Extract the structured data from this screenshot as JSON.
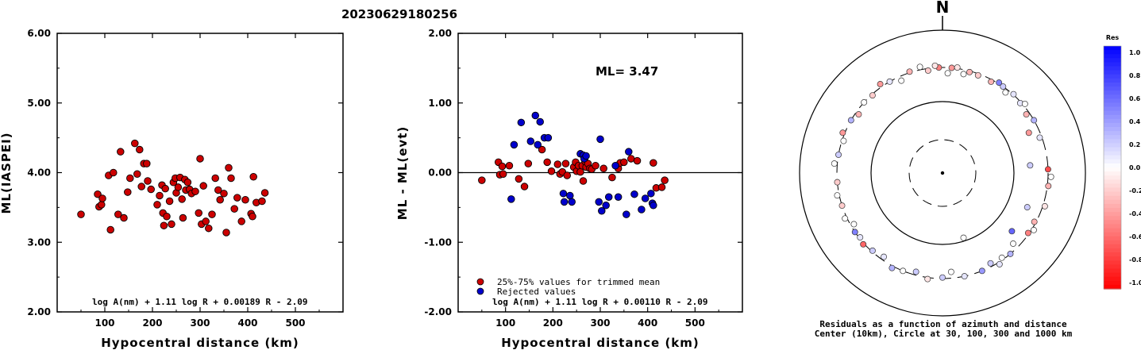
{
  "event_id": "20230629180256",
  "colors": {
    "station_red": "#cc0000",
    "rejected_blue": "#0000cc",
    "axis": "#000000"
  },
  "chart_data": [
    {
      "type": "scatter",
      "xlabel": "Hypocentral distance (km)",
      "ylabel": "ML(IASPEI)",
      "xlim": [
        0,
        600
      ],
      "ylim": [
        2.0,
        6.0
      ],
      "xticks": [
        "100",
        "200",
        "300",
        "400",
        "500"
      ],
      "yticks": [
        "2.00",
        "3.00",
        "4.00",
        "5.00",
        "6.00"
      ],
      "formula": "log A(nm) + 1.11 log R + 0.00189 R - 2.09",
      "series": [
        {
          "color": "#cc0000",
          "points": [
            [
              50,
              3.4
            ],
            [
              85,
              3.69
            ],
            [
              88,
              3.51
            ],
            [
              93,
              3.54
            ],
            [
              95,
              3.63
            ],
            [
              108,
              3.96
            ],
            [
              112,
              3.18
            ],
            [
              118,
              4.0
            ],
            [
              128,
              3.4
            ],
            [
              133,
              4.3
            ],
            [
              140,
              3.35
            ],
            [
              148,
              3.72
            ],
            [
              153,
              3.92
            ],
            [
              163,
              4.42
            ],
            [
              168,
              3.98
            ],
            [
              173,
              4.33
            ],
            [
              177,
              3.8
            ],
            [
              182,
              4.13
            ],
            [
              188,
              4.13
            ],
            [
              190,
              3.88
            ],
            [
              197,
              3.76
            ],
            [
              210,
              3.54
            ],
            [
              215,
              3.67
            ],
            [
              220,
              3.82
            ],
            [
              222,
              3.42
            ],
            [
              224,
              3.24
            ],
            [
              227,
              3.77
            ],
            [
              230,
              3.37
            ],
            [
              236,
              3.59
            ],
            [
              240,
              3.26
            ],
            [
              244,
              3.86
            ],
            [
              248,
              3.92
            ],
            [
              250,
              3.71
            ],
            [
              254,
              3.79
            ],
            [
              258,
              3.93
            ],
            [
              262,
              3.62
            ],
            [
              264,
              3.35
            ],
            [
              268,
              3.9
            ],
            [
              270,
              3.75
            ],
            [
              274,
              3.86
            ],
            [
              278,
              3.76
            ],
            [
              282,
              3.7
            ],
            [
              290,
              3.73
            ],
            [
              297,
              3.42
            ],
            [
              300,
              4.2
            ],
            [
              303,
              3.26
            ],
            [
              307,
              3.81
            ],
            [
              312,
              3.3
            ],
            [
              318,
              3.2
            ],
            [
              325,
              3.4
            ],
            [
              332,
              3.92
            ],
            [
              338,
              3.75
            ],
            [
              342,
              3.61
            ],
            [
              350,
              3.7
            ],
            [
              355,
              3.14
            ],
            [
              360,
              4.07
            ],
            [
              365,
              3.92
            ],
            [
              372,
              3.48
            ],
            [
              378,
              3.64
            ],
            [
              387,
              3.3
            ],
            [
              395,
              3.61
            ],
            [
              407,
              3.41
            ],
            [
              410,
              3.37
            ],
            [
              412,
              3.94
            ],
            [
              418,
              3.57
            ],
            [
              430,
              3.59
            ],
            [
              436,
              3.71
            ]
          ]
        }
      ]
    },
    {
      "type": "scatter",
      "xlabel": "Hypocentral distance (km)",
      "ylabel": "ML - ML(evt)",
      "xlim": [
        0,
        600
      ],
      "ylim": [
        -2.0,
        2.0
      ],
      "xticks": [
        "100",
        "200",
        "300",
        "400",
        "500"
      ],
      "yticks": [
        "-2.00",
        "-1.00",
        "0.00",
        "1.00",
        "2.00"
      ],
      "ml_label": "ML= 3.47",
      "reference_line": 0.0,
      "formula": "log A(nm) + 1.11 log R + 0.00110 R - 2.09",
      "series": [
        {
          "name": "25%-75% values for trimmed mean",
          "color": "#cc0000",
          "points": [
            [
              50,
              -0.11
            ],
            [
              85,
              0.15
            ],
            [
              88,
              -0.03
            ],
            [
              93,
              0.09
            ],
            [
              95,
              -0.02
            ],
            [
              108,
              0.1
            ],
            [
              128,
              -0.09
            ],
            [
              140,
              -0.2
            ],
            [
              148,
              0.13
            ],
            [
              177,
              0.33
            ],
            [
              188,
              0.15
            ],
            [
              197,
              0.02
            ],
            [
              210,
              0.12
            ],
            [
              215,
              -0.02
            ],
            [
              220,
              0.01
            ],
            [
              227,
              0.13
            ],
            [
              230,
              -0.04
            ],
            [
              244,
              0.08
            ],
            [
              248,
              0.15
            ],
            [
              250,
              0.02
            ],
            [
              254,
              0.1
            ],
            [
              258,
              0.01
            ],
            [
              262,
              0.1
            ],
            [
              264,
              -0.12
            ],
            [
              268,
              0.16
            ],
            [
              270,
              0.08
            ],
            [
              274,
              0.13
            ],
            [
              278,
              0.06
            ],
            [
              282,
              0.05
            ],
            [
              290,
              0.1
            ],
            [
              307,
              0.06
            ],
            [
              325,
              -0.07
            ],
            [
              338,
              0.06
            ],
            [
              342,
              0.14
            ],
            [
              350,
              0.15
            ],
            [
              365,
              0.2
            ],
            [
              378,
              0.17
            ],
            [
              412,
              0.14
            ],
            [
              418,
              -0.22
            ],
            [
              430,
              -0.21
            ],
            [
              436,
              -0.11
            ]
          ]
        },
        {
          "name": "Rejected values",
          "color": "#0000cc",
          "points": [
            [
              112,
              -0.38
            ],
            [
              118,
              0.4
            ],
            [
              133,
              0.72
            ],
            [
              153,
              0.45
            ],
            [
              163,
              0.82
            ],
            [
              168,
              0.4
            ],
            [
              173,
              0.73
            ],
            [
              182,
              0.5
            ],
            [
              190,
              0.5
            ],
            [
              222,
              -0.3
            ],
            [
              224,
              -0.42
            ],
            [
              236,
              -0.33
            ],
            [
              240,
              -0.42
            ],
            [
              258,
              0.27
            ],
            [
              264,
              0.25
            ],
            [
              266,
              0.2
            ],
            [
              270,
              0.24
            ],
            [
              297,
              -0.42
            ],
            [
              300,
              0.48
            ],
            [
              303,
              -0.55
            ],
            [
              312,
              -0.47
            ],
            [
              318,
              -0.35
            ],
            [
              332,
              0.1
            ],
            [
              338,
              -0.35
            ],
            [
              355,
              -0.6
            ],
            [
              360,
              0.3
            ],
            [
              372,
              -0.31
            ],
            [
              387,
              -0.53
            ],
            [
              395,
              -0.37
            ],
            [
              407,
              -0.3
            ],
            [
              410,
              -0.44
            ],
            [
              412,
              -0.47
            ]
          ]
        }
      ]
    },
    {
      "type": "polar-scatter",
      "north_label": "N",
      "caption_1": "Residuals as a function of azimuth and distance",
      "caption_2": "Center (10km), Circle at 30, 100, 300 and 1000 km",
      "colorbar_title": "Res",
      "colorbar_ticks": [
        "1.0",
        "0.8",
        "0.6",
        "0.4",
        "0.2",
        "0.0",
        "-0.2",
        "-0.4",
        "-0.6",
        "-0.8",
        "-1.0"
      ],
      "points": [
        [
          3,
          250,
          0.0
        ],
        [
          5,
          300,
          -0.4
        ],
        [
          8,
          310,
          -0.1
        ],
        [
          -2,
          300,
          -0.5
        ],
        [
          12,
          260,
          0.0
        ],
        [
          15,
          290,
          -0.3
        ],
        [
          20,
          285,
          -0.2
        ],
        [
          28,
          280,
          -0.3
        ],
        [
          32,
          310,
          0.5
        ],
        [
          35,
          300,
          0.2
        ],
        [
          38,
          270,
          0.0
        ],
        [
          42,
          305,
          0.1
        ],
        [
          48,
          290,
          0.1
        ],
        [
          50,
          320,
          0.0
        ],
        [
          55,
          270,
          -0.3
        ],
        [
          60,
          300,
          0.3
        ],
        [
          65,
          215,
          -0.4
        ],
        [
          70,
          280,
          0.1
        ],
        [
          85,
          170,
          0.2
        ],
        [
          88,
          300,
          -0.7
        ],
        [
          92,
          330,
          0.0
        ],
        [
          97,
          310,
          -0.3
        ],
        [
          108,
          320,
          -0.1
        ],
        [
          112,
          190,
          0.2
        ],
        [
          118,
          285,
          -0.3
        ],
        [
          122,
          320,
          0.0
        ],
        [
          125,
          290,
          -0.5
        ],
        [
          130,
          185,
          0.6
        ],
        [
          135,
          250,
          0.0
        ],
        [
          140,
          300,
          0.3
        ],
        [
          145,
          280,
          0.0
        ],
        [
          148,
          320,
          0.1
        ],
        [
          152,
          270,
          0.2
        ],
        [
          158,
          300,
          0.4
        ],
        [
          162,
          90,
          0.0
        ],
        [
          168,
          300,
          0.1
        ],
        [
          175,
          245,
          0.0
        ],
        [
          180,
          290,
          0.2
        ],
        [
          188,
          315,
          -0.1
        ],
        [
          195,
          270,
          0.2
        ],
        [
          202,
          300,
          0.0
        ],
        [
          208,
          320,
          0.3
        ],
        [
          215,
          270,
          0.1
        ],
        [
          222,
          290,
          0.2
        ],
        [
          228,
          310,
          -0.6
        ],
        [
          232,
          290,
          0.1
        ],
        [
          236,
          300,
          0.5
        ],
        [
          240,
          270,
          0.0
        ],
        [
          245,
          320,
          0.0
        ],
        [
          252,
          300,
          -0.2
        ],
        [
          258,
          320,
          0.0
        ],
        [
          265,
          300,
          -0.2
        ],
        [
          275,
          330,
          0.0
        ],
        [
          280,
          300,
          0.2
        ],
        [
          288,
          285,
          0.0
        ],
        [
          292,
          320,
          -0.4
        ],
        [
          300,
          300,
          0.3
        ],
        [
          305,
          270,
          -0.3
        ],
        [
          312,
          300,
          0.0
        ],
        [
          318,
          290,
          -0.2
        ],
        [
          325,
          330,
          -0.4
        ],
        [
          330,
          300,
          0.1
        ],
        [
          336,
          260,
          0.0
        ],
        [
          342,
          310,
          -0.3
        ],
        [
          348,
          330,
          0.0
        ],
        [
          352,
          280,
          -0.2
        ],
        [
          356,
          320,
          -0.1
        ]
      ]
    }
  ]
}
